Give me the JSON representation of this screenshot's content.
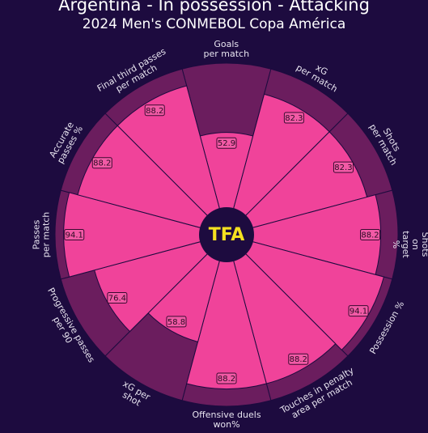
{
  "chart_data": {
    "type": "pizza",
    "title": "Argentina - In possession - Attacking",
    "subtitle": "2024 Men's CONMEBOL Copa América",
    "logo": "TFA",
    "categories": [
      "Goals\nper match",
      "xG\nper match",
      "Shots\nper match",
      "Shots on\ntarget %",
      "Possession %",
      "Touches in penalty\narea per match",
      "Offensive duels\nwon%",
      "xG per\nshot",
      "Progressive passes\nper 90",
      "Passes\nper match",
      "Accurate\npasses %",
      "Final third passes\nper match"
    ],
    "values": [
      52.9,
      82.3,
      82.3,
      88.2,
      94.1,
      88.2,
      88.2,
      58.8,
      76.4,
      94.1,
      88.2,
      88.2
    ],
    "color": "#f0439a",
    "background_color": "#6b1d5e",
    "ylim": [
      0,
      100
    ]
  }
}
